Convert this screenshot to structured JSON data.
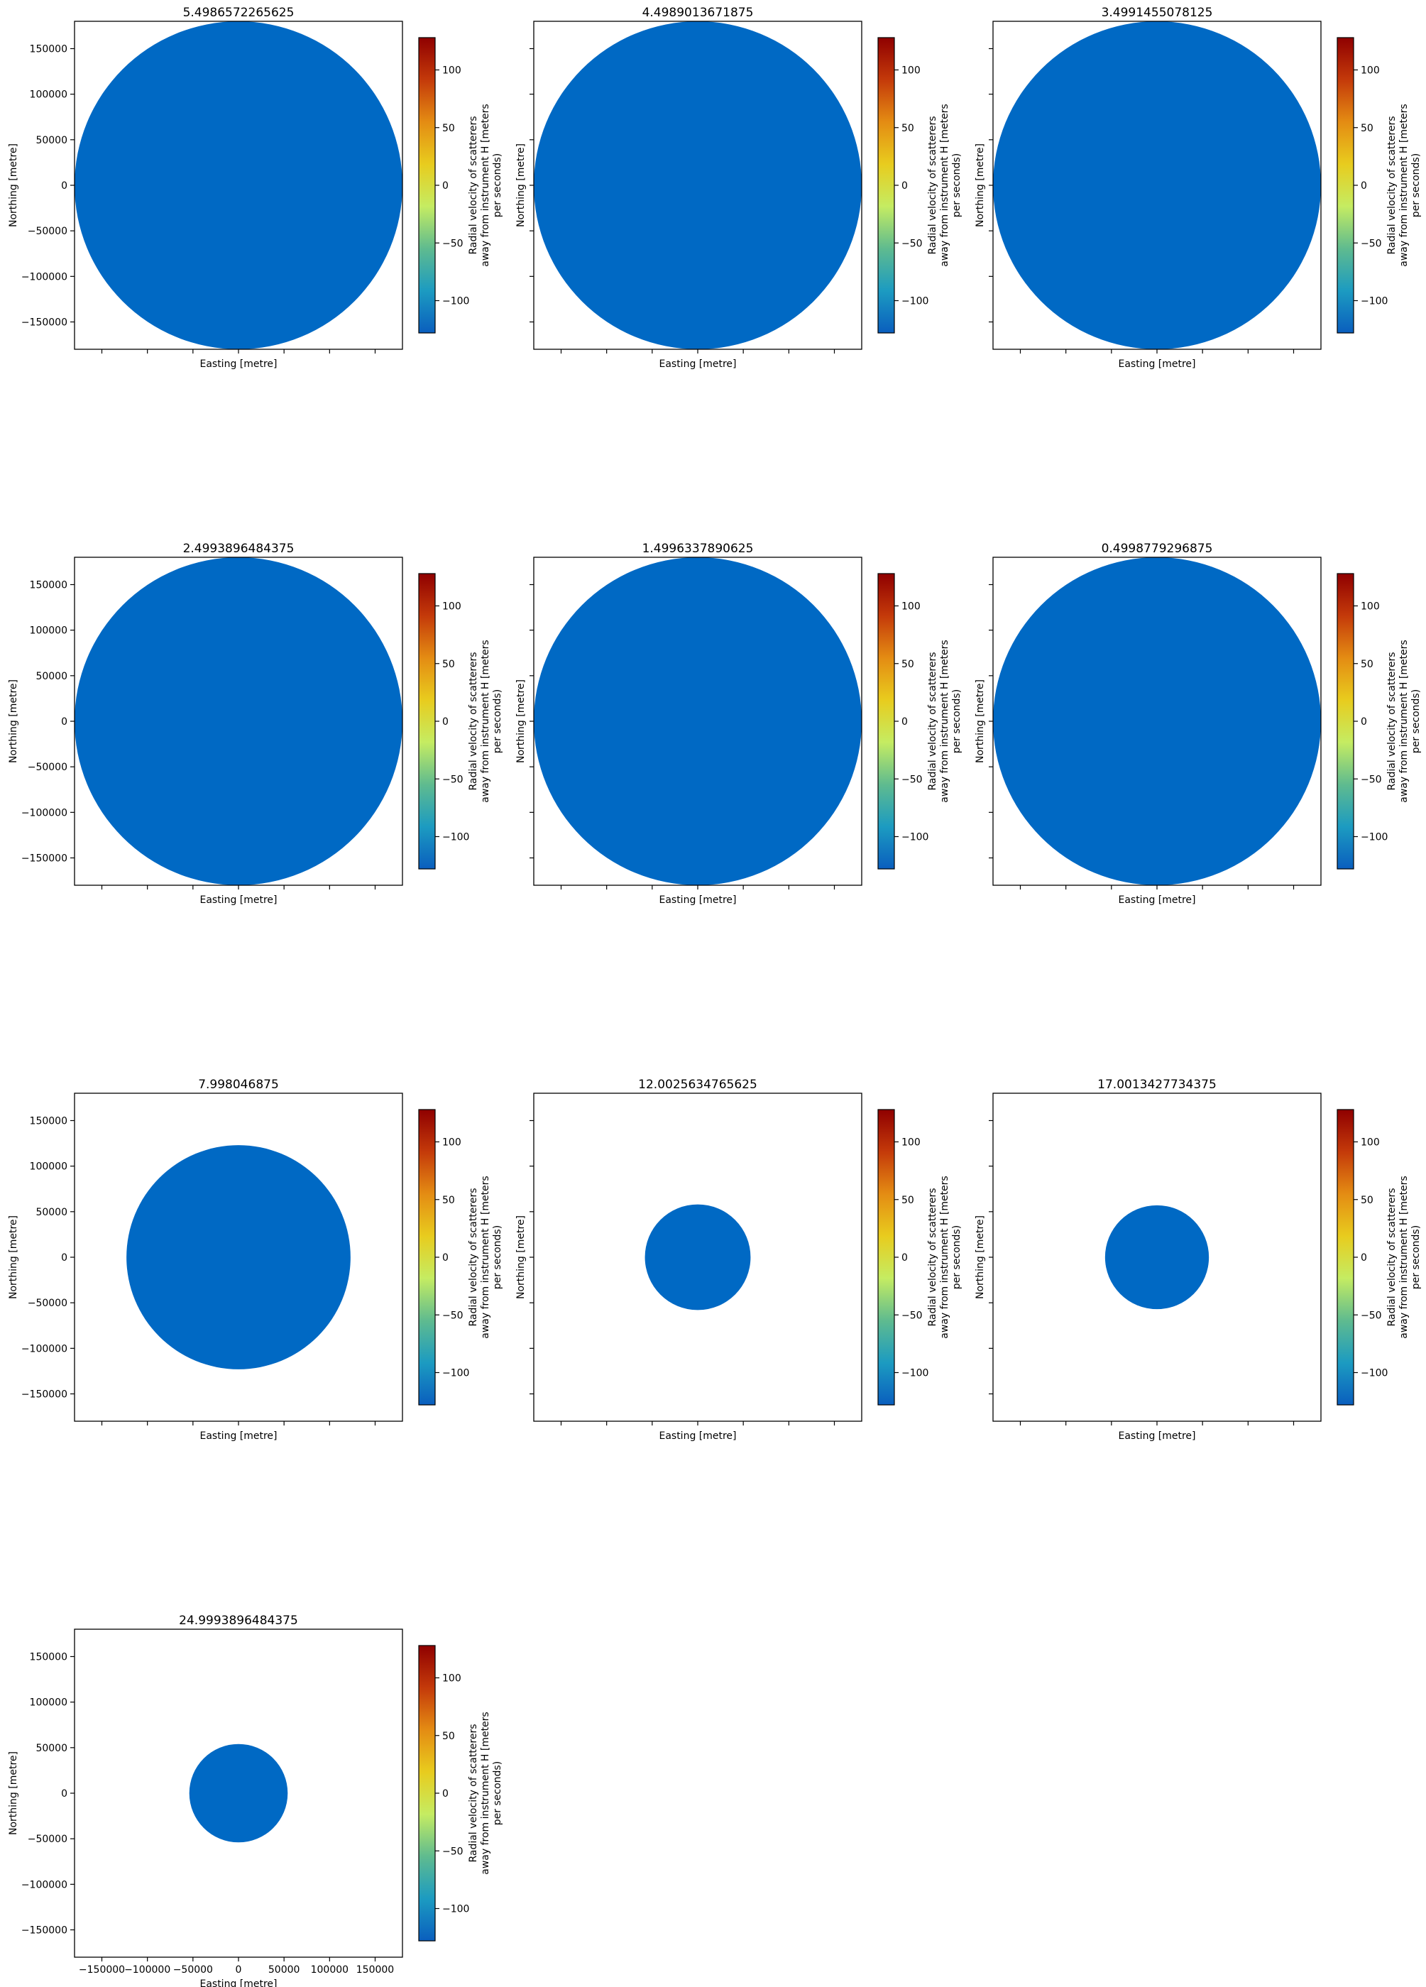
{
  "figure": {
    "xlabel": "Easting [metre]",
    "ylabel": "Northing [metre]",
    "colorbar_label_lines": [
      "Radial velocity of scatterers",
      "away from instrument H [meters",
      "per seconds)"
    ],
    "colormap": [
      "#0a5ebe",
      "#1c9bc1",
      "#5fbb8f",
      "#c5ec62",
      "#e8cc1e",
      "#e48c13",
      "#c43a0a",
      "#8f0000"
    ],
    "colorbar_ticks": [
      100,
      50,
      0,
      -50,
      -100
    ],
    "colorbar_range": [
      -128,
      128
    ]
  },
  "chart_data": [
    {
      "type": "heatmap",
      "title": "5.4986572265625",
      "xlim": [
        -180000,
        180000
      ],
      "ylim": [
        -180000,
        180000
      ],
      "data_extent_radius": 180000,
      "fill_color": "#0069c4",
      "fill_value": -125,
      "x_tick_labels_shown": false,
      "y_tick_labels_shown": true
    },
    {
      "type": "heatmap",
      "title": "4.4989013671875",
      "xlim": [
        -180000,
        180000
      ],
      "ylim": [
        -180000,
        180000
      ],
      "data_extent_radius": 180000,
      "fill_color": "#0069c4",
      "fill_value": -125,
      "x_tick_labels_shown": false,
      "y_tick_labels_shown": false
    },
    {
      "type": "heatmap",
      "title": "3.4991455078125",
      "xlim": [
        -180000,
        180000
      ],
      "ylim": [
        -180000,
        180000
      ],
      "data_extent_radius": 180000,
      "fill_color": "#0069c4",
      "fill_value": -125,
      "x_tick_labels_shown": false,
      "y_tick_labels_shown": false
    },
    {
      "type": "heatmap",
      "title": "2.4993896484375",
      "xlim": [
        -180000,
        180000
      ],
      "ylim": [
        -180000,
        180000
      ],
      "data_extent_radius": 180000,
      "fill_color": "#0069c4",
      "fill_value": -125,
      "x_tick_labels_shown": false,
      "y_tick_labels_shown": true
    },
    {
      "type": "heatmap",
      "title": "1.4996337890625",
      "xlim": [
        -180000,
        180000
      ],
      "ylim": [
        -180000,
        180000
      ],
      "data_extent_radius": 180000,
      "fill_color": "#0069c4",
      "fill_value": -125,
      "x_tick_labels_shown": false,
      "y_tick_labels_shown": false
    },
    {
      "type": "heatmap",
      "title": "0.4998779296875",
      "xlim": [
        -180000,
        180000
      ],
      "ylim": [
        -180000,
        180000
      ],
      "data_extent_radius": 180000,
      "fill_color": "#0069c4",
      "fill_value": -125,
      "x_tick_labels_shown": false,
      "y_tick_labels_shown": false
    },
    {
      "type": "heatmap",
      "title": "7.998046875",
      "xlim": [
        -180000,
        180000
      ],
      "ylim": [
        -180000,
        180000
      ],
      "data_extent_radius": 123000,
      "fill_color": "#0069c4",
      "fill_value": -125,
      "x_tick_labels_shown": false,
      "y_tick_labels_shown": true
    },
    {
      "type": "heatmap",
      "title": "12.0025634765625",
      "xlim": [
        -180000,
        180000
      ],
      "ylim": [
        -180000,
        180000
      ],
      "data_extent_radius": 58000,
      "fill_color": "#0069c4",
      "fill_value": -125,
      "x_tick_labels_shown": false,
      "y_tick_labels_shown": false
    },
    {
      "type": "heatmap",
      "title": "17.0013427734375",
      "xlim": [
        -180000,
        180000
      ],
      "ylim": [
        -180000,
        180000
      ],
      "data_extent_radius": 57000,
      "fill_color": "#0069c4",
      "fill_value": -125,
      "x_tick_labels_shown": false,
      "y_tick_labels_shown": false
    },
    {
      "type": "heatmap",
      "title": "24.9993896484375",
      "xlim": [
        -180000,
        180000
      ],
      "ylim": [
        -180000,
        180000
      ],
      "data_extent_radius": 54000,
      "fill_color": "#0069c4",
      "fill_value": -125,
      "x_tick_labels_shown": true,
      "y_tick_labels_shown": true
    }
  ],
  "axis_ticks": {
    "y": [
      150000,
      100000,
      50000,
      0,
      -50000,
      -100000,
      -150000
    ],
    "x": [
      -150000,
      -100000,
      -50000,
      0,
      50000,
      100000,
      150000
    ],
    "y_labels": [
      "150000",
      "100000",
      "50000",
      "0",
      "−50000",
      "−100000",
      "−150000"
    ],
    "x_labels": [
      "−150000",
      "−100000",
      "−50000",
      "0",
      "50000",
      "100000",
      "150000"
    ],
    "colorbar_labels": [
      "100",
      "50",
      "0",
      "−50",
      "−100"
    ]
  }
}
